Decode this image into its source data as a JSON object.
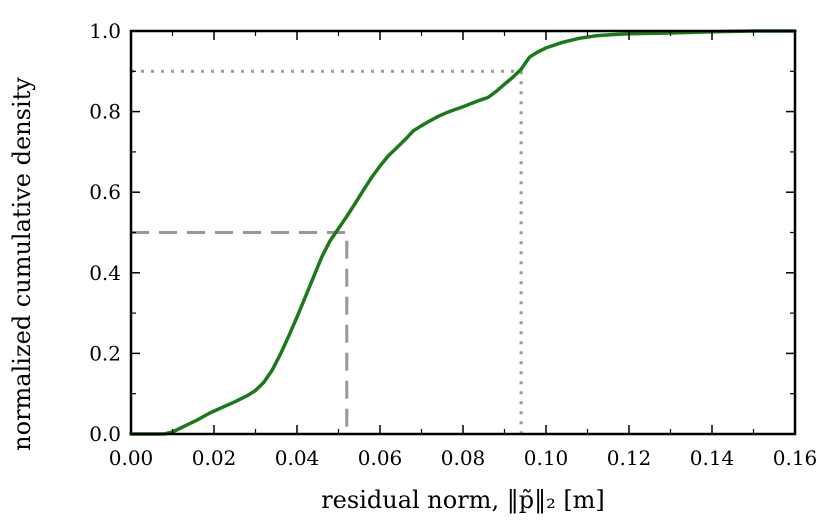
{
  "chart_data": {
    "type": "line",
    "title": "",
    "xlabel": "residual norm, ‖p̃‖₂ [m]",
    "ylabel": "normalized cumulative density",
    "xlim": [
      0.0,
      0.16
    ],
    "ylim": [
      0.0,
      1.0
    ],
    "x_ticks": [
      0.0,
      0.02,
      0.04,
      0.06,
      0.08,
      0.1,
      0.12,
      0.14,
      0.16
    ],
    "x_tick_labels": [
      "0.00",
      "0.02",
      "0.04",
      "0.06",
      "0.08",
      "0.10",
      "0.12",
      "0.14",
      "0.16"
    ],
    "y_ticks": [
      0.0,
      0.2,
      0.4,
      0.6,
      0.8,
      1.0
    ],
    "y_tick_labels": [
      "0.0",
      "0.2",
      "0.4",
      "0.6",
      "0.8",
      "1.0"
    ],
    "grid": false,
    "series": [
      {
        "color": "#1a7a1a",
        "style": "solid",
        "x": [
          0.0,
          0.008,
          0.01,
          0.013,
          0.016,
          0.019,
          0.022,
          0.025,
          0.028,
          0.03,
          0.032,
          0.034,
          0.036,
          0.038,
          0.04,
          0.042,
          0.044,
          0.046,
          0.048,
          0.05,
          0.052,
          0.054,
          0.056,
          0.058,
          0.06,
          0.062,
          0.064,
          0.066,
          0.068,
          0.07,
          0.072,
          0.074,
          0.076,
          0.078,
          0.08,
          0.082,
          0.084,
          0.086,
          0.088,
          0.09,
          0.092,
          0.094,
          0.096,
          0.098,
          0.1,
          0.104,
          0.108,
          0.112,
          0.116,
          0.12,
          0.13,
          0.14,
          0.15,
          0.16
        ],
        "y": [
          0.0,
          0.0,
          0.005,
          0.02,
          0.035,
          0.052,
          0.066,
          0.08,
          0.095,
          0.108,
          0.128,
          0.158,
          0.198,
          0.243,
          0.29,
          0.34,
          0.39,
          0.44,
          0.48,
          0.51,
          0.54,
          0.572,
          0.605,
          0.637,
          0.665,
          0.69,
          0.71,
          0.73,
          0.752,
          0.765,
          0.777,
          0.788,
          0.797,
          0.805,
          0.812,
          0.82,
          0.828,
          0.835,
          0.85,
          0.868,
          0.885,
          0.905,
          0.935,
          0.948,
          0.958,
          0.972,
          0.982,
          0.988,
          0.991,
          0.993,
          0.995,
          0.998,
          1.0,
          1.0
        ]
      }
    ],
    "reference_lines": [
      {
        "style": "dashed",
        "color": "#999999",
        "x": 0.052,
        "y": 0.5
      },
      {
        "style": "dotted",
        "color": "#999999",
        "x": 0.094,
        "y": 0.9
      }
    ]
  }
}
